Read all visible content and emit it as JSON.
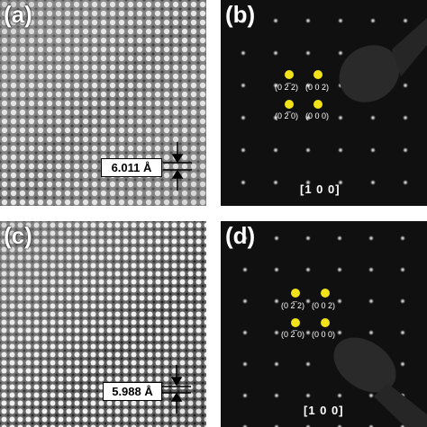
{
  "panels": [
    {
      "label": "(a)",
      "measurement": "6.011 Å"
    },
    {
      "label": "(b)",
      "zone_axis": "[1 0 0]",
      "spots": [
        "(0 2̅ 2)",
        "(0 0 2)",
        "(0 2̅ 0)",
        "(0 0 0)"
      ]
    },
    {
      "label": "(c)",
      "measurement": "5.988 Å"
    },
    {
      "label": "(d)",
      "zone_axis": "[1 0 0]",
      "spots": [
        "(0 2̅ 2)",
        "(0 0 2)",
        "(0 2̅ 0)",
        "(0 0 0)"
      ]
    }
  ],
  "colors": {
    "highlight": "#f2e21a",
    "diffraction_bg": "#101010"
  }
}
